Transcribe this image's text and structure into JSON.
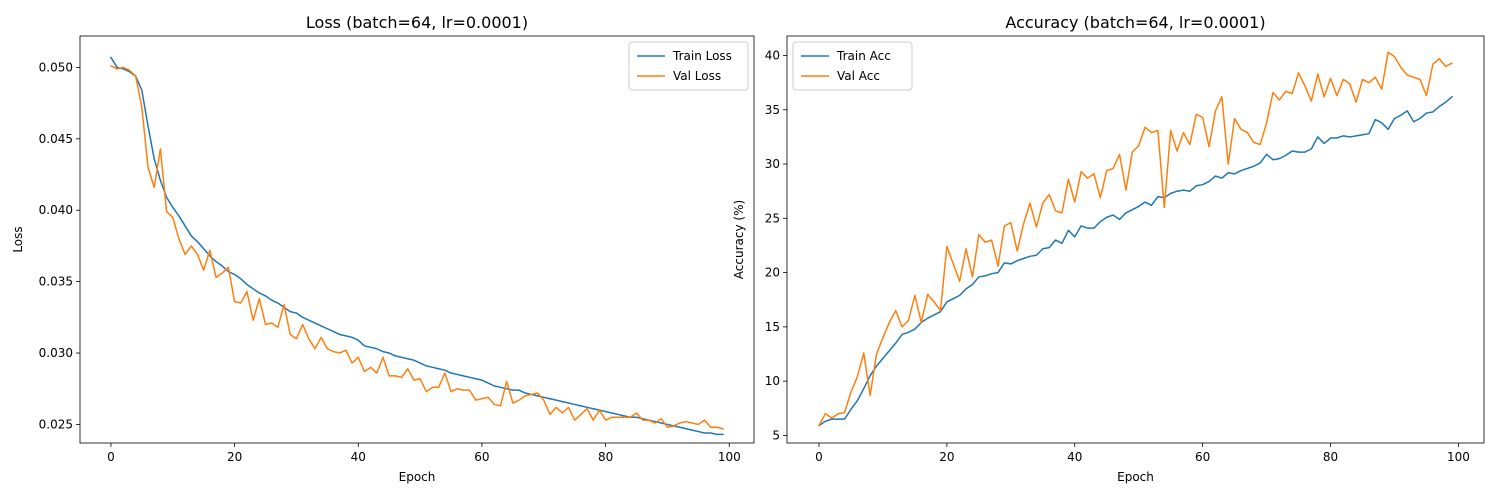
{
  "chart_data": [
    {
      "type": "line",
      "title": "Loss (batch=64, lr=0.0001)",
      "xlabel": "Epoch",
      "ylabel": "Loss",
      "xlim": [
        -5,
        104
      ],
      "ylim": [
        0.0237,
        0.0522
      ],
      "xticks": [
        0,
        20,
        40,
        60,
        80,
        100
      ],
      "yticks": [
        0.025,
        0.03,
        0.035,
        0.04,
        0.045,
        0.05
      ],
      "ytick_labels": [
        "0.025",
        "0.030",
        "0.035",
        "0.040",
        "0.045",
        "0.050"
      ],
      "legend": "top-right",
      "grid": false,
      "series": [
        {
          "name": "Train Loss",
          "color": "#1f77b4",
          "values": [
            0.0507,
            0.05,
            0.0499,
            0.0497,
            0.0494,
            0.0484,
            0.0459,
            0.0436,
            0.0421,
            0.0409,
            0.0402,
            0.0396,
            0.0389,
            0.0382,
            0.0378,
            0.0373,
            0.0368,
            0.0364,
            0.0361,
            0.0357,
            0.0355,
            0.0352,
            0.0348,
            0.0345,
            0.0342,
            0.034,
            0.0337,
            0.0335,
            0.0332,
            0.0329,
            0.0328,
            0.0325,
            0.0323,
            0.0321,
            0.0319,
            0.0317,
            0.0315,
            0.0313,
            0.0312,
            0.0311,
            0.0309,
            0.0305,
            0.0304,
            0.0303,
            0.0301,
            0.03,
            0.0298,
            0.0297,
            0.0296,
            0.0295,
            0.0293,
            0.0291,
            0.029,
            0.0289,
            0.0288,
            0.0286,
            0.0285,
            0.0284,
            0.0283,
            0.0282,
            0.0281,
            0.0279,
            0.0277,
            0.0276,
            0.0275,
            0.0274,
            0.0274,
            0.0272,
            0.0271,
            0.027,
            0.0269,
            0.0268,
            0.0267,
            0.0266,
            0.0265,
            0.0264,
            0.0263,
            0.0262,
            0.0261,
            0.026,
            0.0259,
            0.0258,
            0.0257,
            0.0256,
            0.0255,
            0.0255,
            0.0254,
            0.0253,
            0.0252,
            0.0251,
            0.025,
            0.0249,
            0.0248,
            0.0247,
            0.0246,
            0.0245,
            0.0244,
            0.0244,
            0.0243,
            0.0243
          ]
        },
        {
          "name": "Val Loss",
          "color": "#ff7f0e",
          "values": [
            0.0501,
            0.0499,
            0.05,
            0.0498,
            0.0494,
            0.0472,
            0.043,
            0.0416,
            0.0443,
            0.0399,
            0.0395,
            0.038,
            0.0369,
            0.0375,
            0.0369,
            0.0358,
            0.0372,
            0.0353,
            0.0356,
            0.036,
            0.0336,
            0.0335,
            0.0343,
            0.0323,
            0.0338,
            0.032,
            0.0321,
            0.0318,
            0.0334,
            0.0313,
            0.031,
            0.032,
            0.031,
            0.0303,
            0.0311,
            0.0303,
            0.0301,
            0.03,
            0.0302,
            0.0293,
            0.0297,
            0.0287,
            0.029,
            0.0286,
            0.0297,
            0.0284,
            0.0284,
            0.0283,
            0.0289,
            0.0281,
            0.0282,
            0.0273,
            0.0276,
            0.0276,
            0.0286,
            0.0273,
            0.0275,
            0.0274,
            0.0274,
            0.0267,
            0.0268,
            0.0269,
            0.0264,
            0.0263,
            0.028,
            0.0265,
            0.0267,
            0.027,
            0.0271,
            0.0272,
            0.0267,
            0.0257,
            0.0262,
            0.0258,
            0.0262,
            0.0253,
            0.0257,
            0.0261,
            0.0253,
            0.026,
            0.0253,
            0.0255,
            0.0255,
            0.0255,
            0.0255,
            0.0258,
            0.0253,
            0.0253,
            0.0251,
            0.0254,
            0.0248,
            0.0249,
            0.0251,
            0.0252,
            0.0251,
            0.025,
            0.0253,
            0.0248,
            0.0248,
            0.0247
          ]
        }
      ]
    },
    {
      "type": "line",
      "title": "Accuracy (batch=64, lr=0.0001)",
      "xlabel": "Epoch",
      "ylabel": "Accuracy (%)",
      "xlim": [
        -5,
        104
      ],
      "ylim": [
        4.3,
        41.8
      ],
      "xticks": [
        0,
        20,
        40,
        60,
        80,
        100
      ],
      "yticks": [
        5,
        10,
        15,
        20,
        25,
        30,
        35,
        40
      ],
      "ytick_labels": [
        "5",
        "10",
        "15",
        "20",
        "25",
        "30",
        "35",
        "40"
      ],
      "legend": "top-left",
      "grid": false,
      "series": [
        {
          "name": "Train Acc",
          "color": "#1f77b4",
          "values": [
            5.9,
            6.3,
            6.5,
            6.5,
            6.5,
            7.4,
            8.2,
            9.3,
            10.5,
            11.4,
            12.1,
            12.8,
            13.5,
            14.3,
            14.5,
            14.8,
            15.4,
            15.8,
            16.1,
            16.4,
            17.3,
            17.6,
            17.9,
            18.5,
            18.9,
            19.6,
            19.7,
            19.9,
            20.0,
            20.9,
            20.8,
            21.1,
            21.3,
            21.5,
            21.6,
            22.2,
            22.3,
            23.0,
            22.7,
            23.9,
            23.3,
            24.3,
            24.1,
            24.1,
            24.7,
            25.1,
            25.3,
            24.9,
            25.5,
            25.8,
            26.1,
            26.5,
            26.2,
            27.0,
            26.9,
            27.3,
            27.5,
            27.6,
            27.5,
            28.0,
            28.1,
            28.4,
            28.9,
            28.7,
            29.2,
            29.1,
            29.4,
            29.6,
            29.8,
            30.1,
            30.9,
            30.4,
            30.5,
            30.8,
            31.2,
            31.1,
            31.1,
            31.4,
            32.5,
            31.9,
            32.4,
            32.4,
            32.6,
            32.5,
            32.6,
            32.7,
            32.8,
            34.1,
            33.8,
            33.2,
            34.2,
            34.5,
            34.9,
            33.9,
            34.2,
            34.7,
            34.8,
            35.3,
            35.7,
            36.2
          ]
        },
        {
          "name": "Val Acc",
          "color": "#ff7f0e",
          "values": [
            5.9,
            7.0,
            6.6,
            7.0,
            7.1,
            9.0,
            10.4,
            12.6,
            8.7,
            12.5,
            14.0,
            15.4,
            16.5,
            15.0,
            15.6,
            17.9,
            15.4,
            18.0,
            17.3,
            16.5,
            22.4,
            20.8,
            19.2,
            22.2,
            19.6,
            23.5,
            22.8,
            23.0,
            20.6,
            24.3,
            24.6,
            22.0,
            24.5,
            26.4,
            24.2,
            26.4,
            27.2,
            25.7,
            25.5,
            28.6,
            26.5,
            29.3,
            28.7,
            29.1,
            26.9,
            29.4,
            29.6,
            30.9,
            27.6,
            31.1,
            31.7,
            33.4,
            32.9,
            33.1,
            26.0,
            33.1,
            31.2,
            32.9,
            31.8,
            34.6,
            34.3,
            31.6,
            34.9,
            36.2,
            30.0,
            34.2,
            33.2,
            32.9,
            32.0,
            31.8,
            33.8,
            36.6,
            35.9,
            36.7,
            36.5,
            38.4,
            37.2,
            35.8,
            38.3,
            36.2,
            37.9,
            36.3,
            37.8,
            37.4,
            35.7,
            37.8,
            37.5,
            38.0,
            36.9,
            40.3,
            39.9,
            38.9,
            38.2,
            38.0,
            37.8,
            36.3,
            39.2,
            39.7,
            39.0,
            39.3
          ]
        }
      ]
    }
  ]
}
